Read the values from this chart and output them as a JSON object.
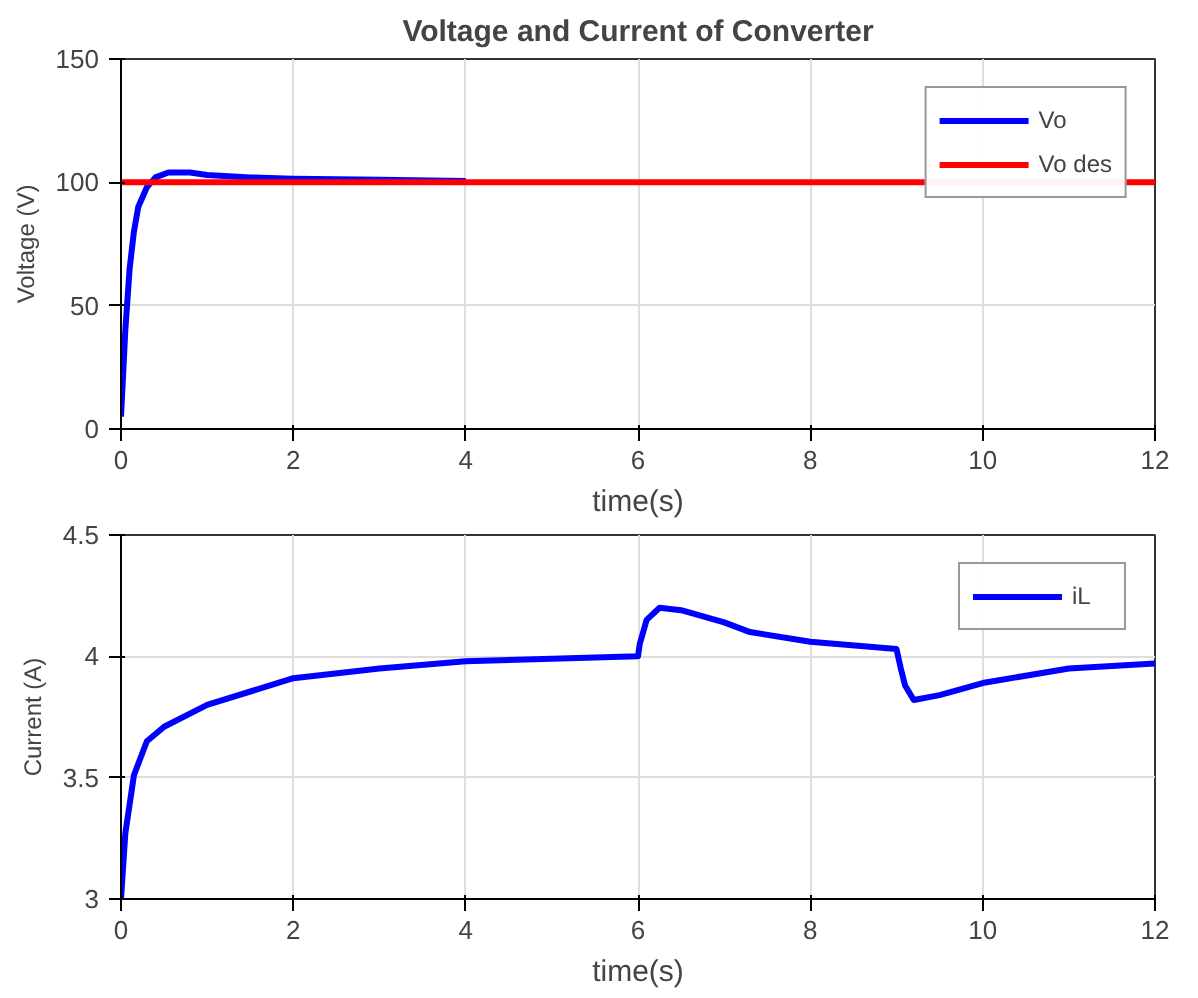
{
  "chart_data": [
    {
      "type": "line",
      "title": "Voltage and Current of Converter",
      "xlabel": "time(s)",
      "ylabel": "Voltage (V)",
      "xlim": [
        0,
        12
      ],
      "xticks": [
        0,
        2,
        4,
        6,
        8,
        10,
        12
      ],
      "ylim": [
        0,
        150
      ],
      "yticks": [
        0,
        50,
        100,
        150
      ],
      "grid": true,
      "legend": "top right",
      "line_style": "solid",
      "series": [
        {
          "name": "Vo",
          "color": "#0000ff",
          "x": [
            0,
            0.05,
            0.1,
            0.15,
            0.2,
            0.3,
            0.4,
            0.55,
            0.8,
            1,
            1.5,
            2,
            3,
            4
          ],
          "values": [
            5,
            40,
            65,
            80,
            90,
            98,
            102,
            104,
            104,
            103,
            102,
            101.5,
            101,
            100.5
          ]
        },
        {
          "name": "Vo des",
          "color": "#ff0000",
          "x": [
            0,
            12
          ],
          "values": [
            100,
            100
          ]
        }
      ]
    },
    {
      "type": "line",
      "xlabel": "time(s)",
      "ylabel": "Current (A)",
      "xlim": [
        0,
        12
      ],
      "xticks": [
        0,
        2,
        4,
        6,
        8,
        10,
        12
      ],
      "ylim": [
        3,
        4.5
      ],
      "yticks": [
        3,
        3.5,
        4,
        4.5
      ],
      "grid": true,
      "legend": "top right",
      "line_style": "solid",
      "series": [
        {
          "name": "iL",
          "color": "#0000ff",
          "x": [
            0,
            0.05,
            0.15,
            0.3,
            0.5,
            1,
            2,
            3,
            4,
            5,
            6,
            6.02,
            6.1,
            6.25,
            6.5,
            7,
            7.3,
            8,
            9,
            9.05,
            9.1,
            9.2,
            9.5,
            10,
            11,
            12
          ],
          "values": [
            3,
            3.27,
            3.51,
            3.65,
            3.71,
            3.8,
            3.91,
            3.95,
            3.98,
            3.99,
            4.0,
            4.05,
            4.15,
            4.2,
            4.19,
            4.14,
            4.1,
            4.06,
            4.03,
            3.95,
            3.88,
            3.82,
            3.84,
            3.89,
            3.95,
            3.97
          ]
        }
      ]
    }
  ]
}
